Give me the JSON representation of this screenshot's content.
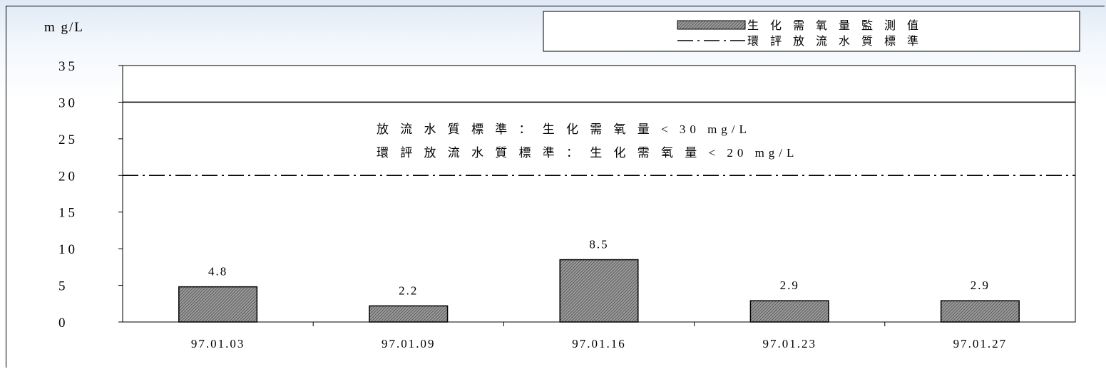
{
  "chart_data": {
    "type": "bar",
    "unit": "m g/L",
    "categories": [
      "97.01.03",
      "97.01.09",
      "97.01.16",
      "97.01.23",
      "97.01.27"
    ],
    "series": [
      {
        "name": "生 化 需 氧 量 監 測 值",
        "values": [
          4.8,
          2.2,
          8.5,
          2.9,
          2.9
        ],
        "value_labels": [
          "4.8",
          "2.2",
          "8.5",
          "2.9",
          "2.9"
        ]
      }
    ],
    "ylim": [
      0,
      35
    ],
    "yticks": [
      0,
      5,
      10,
      15,
      20,
      25,
      30,
      35
    ],
    "ytick_labels": [
      "0",
      "5",
      "10",
      "15",
      "20",
      "25",
      "30",
      "35"
    ],
    "reference_lines": [
      {
        "value": 30,
        "style": "solid"
      },
      {
        "value": 20,
        "style": "dash-dot",
        "name": "環 評 放 流 水 質 標 準"
      }
    ],
    "annotations": [
      "放 流 水 質 標 準 ： 生 化 需 氧 量 < 30 mg/L",
      "環 評 放 流 水 質 標 準 ： 生 化 需 氧 量 < 20 mg/L"
    ],
    "legend": {
      "placement": "top-right",
      "entries": [
        "生 化 需 氧 量 監 測 值",
        "環 評 放 流 水 質 標 準"
      ]
    },
    "bar_color": "#808080",
    "grid": false
  }
}
